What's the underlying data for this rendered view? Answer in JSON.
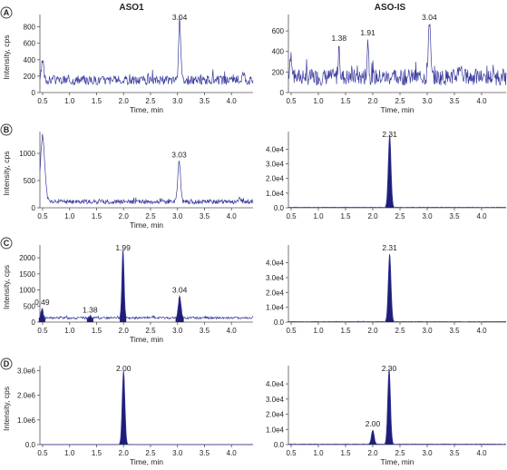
{
  "column_titles": [
    "ASO1",
    "ASO-IS"
  ],
  "colors": {
    "trace": "#3b3b9e",
    "fill": "#1e1e78",
    "axis": "#555555"
  },
  "chart_data": [
    {
      "id": "A-ASO1",
      "row": "A",
      "type": "line",
      "xlabel": "Time, min",
      "ylabel": "Intensity, cps",
      "xlim": [
        0.45,
        4.4
      ],
      "ylim": [
        0,
        950
      ],
      "xticks": [
        0.5,
        1.0,
        1.5,
        2.0,
        2.5,
        3.0,
        3.5,
        4.0
      ],
      "yticks": [
        0,
        200,
        400,
        600,
        800
      ],
      "yticklabels": [
        "0",
        "200",
        "400",
        "600",
        "800"
      ],
      "noise": {
        "base": 150,
        "amp": 55,
        "seed": 3
      },
      "peaks": [
        {
          "x": 0.5,
          "y": 380,
          "w": 0.02,
          "label": ""
        },
        {
          "x": 3.04,
          "y": 910,
          "w": 0.02,
          "label": "3.04"
        },
        {
          "x": 4.22,
          "y": 230,
          "w": 0.025,
          "label": ""
        }
      ],
      "filled": false
    },
    {
      "id": "A-ASO-IS",
      "row": "A",
      "type": "line",
      "xlabel": "Time, min",
      "ylabel": "",
      "xlim": [
        0.45,
        4.45
      ],
      "ylim": [
        0,
        760
      ],
      "xticks": [
        0.5,
        1.0,
        1.5,
        2.0,
        2.5,
        3.0,
        3.5,
        4.0
      ],
      "yticks": [
        0,
        200,
        400,
        600
      ],
      "yticklabels": [
        "0",
        "200",
        "400",
        "600"
      ],
      "noise": {
        "base": 150,
        "amp": 80,
        "seed": 7
      },
      "peaks": [
        {
          "x": 0.5,
          "y": 350,
          "w": 0.02,
          "label": ""
        },
        {
          "x": 1.38,
          "y": 470,
          "w": 0.015,
          "label": "1.38"
        },
        {
          "x": 1.91,
          "y": 520,
          "w": 0.015,
          "label": "1.91"
        },
        {
          "x": 3.04,
          "y": 710,
          "w": 0.02,
          "label": "3.04"
        },
        {
          "x": 3.6,
          "y": 260,
          "w": 0.03,
          "label": ""
        }
      ],
      "filled": false
    },
    {
      "id": "B-ASO1",
      "row": "B",
      "type": "line",
      "xlabel": "Time, min",
      "ylabel": "Intensity, cps",
      "xlim": [
        0.45,
        4.4
      ],
      "ylim": [
        0,
        1400
      ],
      "xticks": [
        0.5,
        1.0,
        1.5,
        2.0,
        2.5,
        3.0,
        3.5,
        4.0
      ],
      "yticks": [
        0,
        500,
        1000
      ],
      "yticklabels": [
        "0",
        "500",
        "1000"
      ],
      "noise": {
        "base": 110,
        "amp": 40,
        "seed": 11
      },
      "peaks": [
        {
          "x": 0.5,
          "y": 1300,
          "w": 0.04,
          "label": ""
        },
        {
          "x": 3.03,
          "y": 860,
          "w": 0.025,
          "label": "3.03"
        },
        {
          "x": 4.15,
          "y": 200,
          "w": 0.02,
          "label": ""
        }
      ],
      "filled": false
    },
    {
      "id": "B-ASO-IS",
      "row": "B",
      "type": "line",
      "xlabel": "",
      "ylabel": "",
      "xlim": [
        0.45,
        4.45
      ],
      "ylim": [
        0,
        52000
      ],
      "xticks": [
        0.5,
        1.0,
        1.5,
        2.0,
        2.5,
        3.0,
        3.5,
        4.0
      ],
      "yticks": [
        0,
        10000,
        20000,
        30000,
        40000
      ],
      "yticklabels": [
        "0.0",
        "1.0e4",
        "2.0e4",
        "3.0e4",
        "4.0e4"
      ],
      "noise": {
        "base": 300,
        "amp": 150,
        "seed": 5
      },
      "peaks": [
        {
          "x": 2.31,
          "y": 50000,
          "w": 0.025,
          "label": "2.31"
        }
      ],
      "filled": true
    },
    {
      "id": "C-ASO1",
      "row": "C",
      "type": "line",
      "xlabel": "Time, min",
      "ylabel": "Intensity, cps",
      "xlim": [
        0.45,
        4.4
      ],
      "ylim": [
        0,
        2400
      ],
      "xticks": [
        0.5,
        1.0,
        1.5,
        2.0,
        2.5,
        3.0,
        3.5,
        4.0
      ],
      "yticks": [
        0,
        500,
        1000,
        1500,
        2000
      ],
      "yticklabels": [
        "0",
        "500",
        "1000",
        "1500",
        "2000"
      ],
      "noise": {
        "base": 130,
        "amp": 35,
        "seed": 13
      },
      "peaks": [
        {
          "x": 0.49,
          "y": 420,
          "w": 0.02,
          "label": "0.49"
        },
        {
          "x": 1.38,
          "y": 180,
          "w": 0.02,
          "label": "1.38"
        },
        {
          "x": 1.99,
          "y": 2280,
          "w": 0.02,
          "label": "1.99"
        },
        {
          "x": 3.04,
          "y": 800,
          "w": 0.025,
          "label": "3.04"
        }
      ],
      "filled": true
    },
    {
      "id": "C-ASO-IS",
      "row": "C",
      "type": "line",
      "xlabel": "",
      "ylabel": "",
      "xlim": [
        0.45,
        4.45
      ],
      "ylim": [
        0,
        52000
      ],
      "xticks": [
        0.5,
        1.0,
        1.5,
        2.0,
        2.5,
        3.0,
        3.5,
        4.0
      ],
      "yticks": [
        0,
        10000,
        20000,
        30000,
        40000
      ],
      "yticklabels": [
        "0.0",
        "1.0e4",
        "2.0e4",
        "3.0e4",
        "4.0e4"
      ],
      "noise": {
        "base": 300,
        "amp": 150,
        "seed": 9
      },
      "peaks": [
        {
          "x": 2.31,
          "y": 46000,
          "w": 0.025,
          "label": "2.31"
        }
      ],
      "filled": true
    },
    {
      "id": "D-ASO1",
      "row": "D",
      "type": "line",
      "xlabel": "Time, min",
      "ylabel": "Intensity, cps",
      "xlim": [
        0.45,
        4.4
      ],
      "ylim": [
        0,
        3200000
      ],
      "xticks": [
        0.5,
        1.0,
        1.5,
        2.0,
        2.5,
        3.0,
        3.5,
        4.0
      ],
      "yticks": [
        0,
        1000000,
        2000000,
        3000000
      ],
      "yticklabels": [
        "0.0",
        "1.0e6",
        "2.0e6",
        "3.0e6"
      ],
      "noise": {
        "base": 2000,
        "amp": 800,
        "seed": 2
      },
      "peaks": [
        {
          "x": 2.0,
          "y": 3000000,
          "w": 0.025,
          "label": "2.00"
        }
      ],
      "filled": true
    },
    {
      "id": "D-ASO-IS",
      "row": "D",
      "type": "line",
      "xlabel": "Time, min",
      "ylabel": "",
      "xlim": [
        0.45,
        4.45
      ],
      "ylim": [
        0,
        52000
      ],
      "xticks": [
        0.5,
        1.0,
        1.5,
        2.0,
        2.5,
        3.0,
        3.5,
        4.0
      ],
      "yticks": [
        0,
        10000,
        20000,
        30000,
        40000
      ],
      "yticklabels": [
        "0.0",
        "1.0e4",
        "2.0e4",
        "3.0e4",
        "4.0e4"
      ],
      "noise": {
        "base": 300,
        "amp": 150,
        "seed": 4
      },
      "peaks": [
        {
          "x": 2.0,
          "y": 9500,
          "w": 0.025,
          "label": "2.00"
        },
        {
          "x": 2.3,
          "y": 50000,
          "w": 0.025,
          "label": "2.30"
        }
      ],
      "filled": true
    }
  ]
}
